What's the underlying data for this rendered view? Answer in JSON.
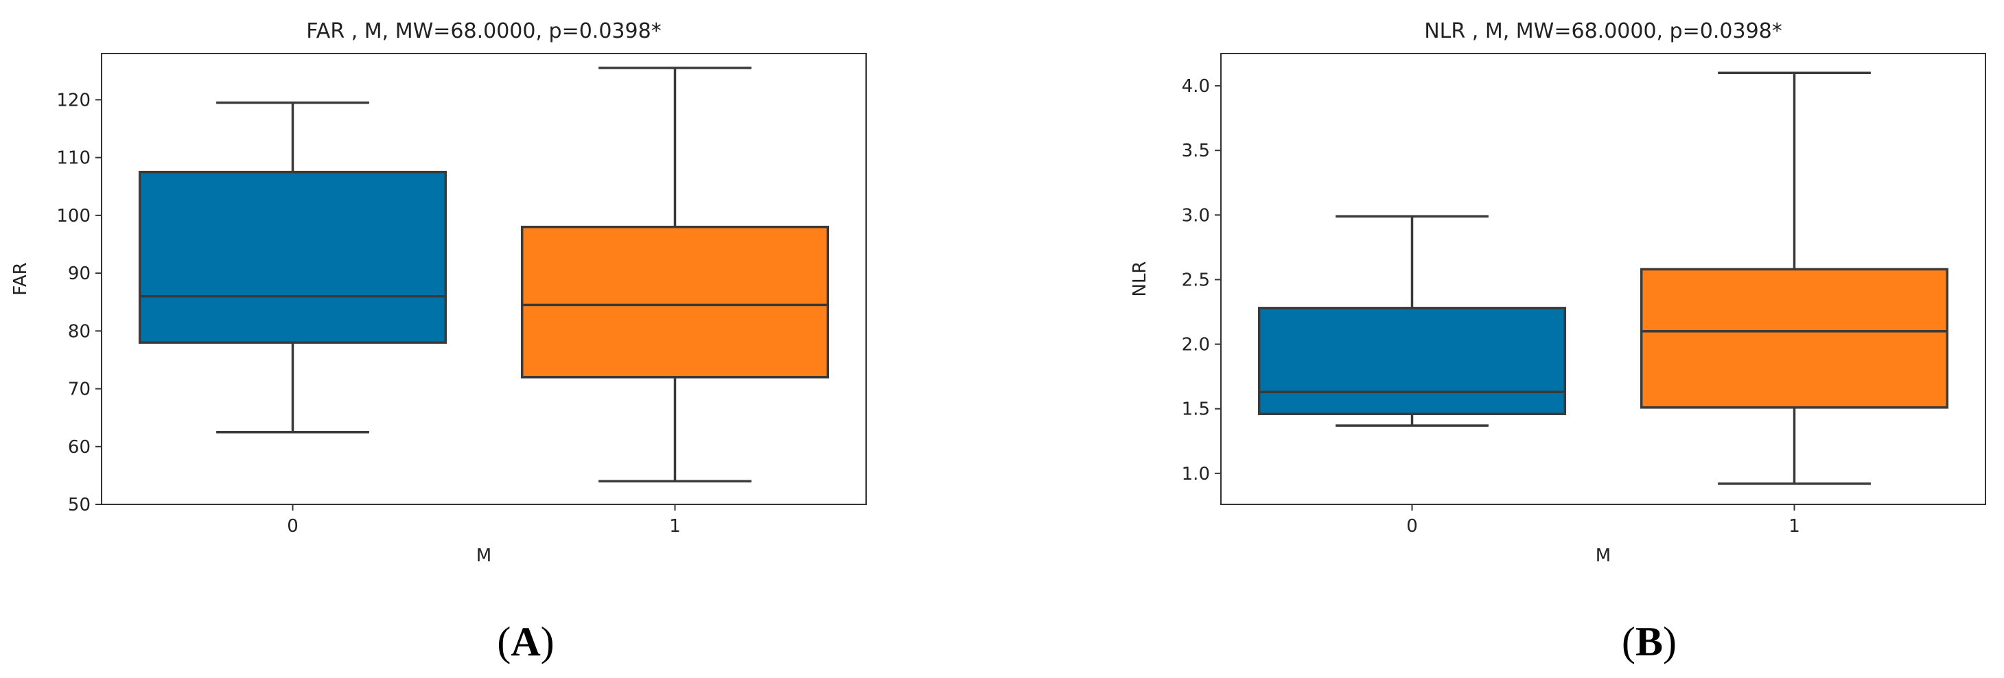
{
  "panel_labels": [
    "(A)",
    "(B)"
  ],
  "panel_label_parts": [
    {
      "open": "(",
      "letter": "A",
      "close": ")"
    },
    {
      "open": "(",
      "letter": "B",
      "close": ")"
    }
  ],
  "colors": {
    "group_0": "#0072a8",
    "group_1": "#ff8019",
    "line": "#3a3a3a",
    "axes": "#333333"
  },
  "chart_data": [
    {
      "type": "box",
      "title": "FAR , M, MW=68.0000, p=0.0398*",
      "xlabel": "M",
      "ylabel": "FAR",
      "categories": [
        "0",
        "1"
      ],
      "ylim": [
        50,
        128
      ],
      "yticks": [
        50,
        60,
        70,
        80,
        90,
        100,
        110,
        120
      ],
      "ytick_labels": [
        "50",
        "60",
        "70",
        "80",
        "90",
        "100",
        "110",
        "120"
      ],
      "boxes": [
        {
          "category": "0",
          "whisker_low": 62.5,
          "q1": 78,
          "median": 86,
          "q3": 107.5,
          "whisker_high": 119.5
        },
        {
          "category": "1",
          "whisker_low": 54,
          "q1": 72,
          "median": 84.5,
          "q3": 98,
          "whisker_high": 125.5
        }
      ]
    },
    {
      "type": "box",
      "title": "NLR , M, MW=68.0000, p=0.0398*",
      "xlabel": "M",
      "ylabel": "NLR",
      "categories": [
        "0",
        "1"
      ],
      "ylim": [
        0.76,
        4.25
      ],
      "yticks": [
        1.0,
        1.5,
        2.0,
        2.5,
        3.0,
        3.5,
        4.0
      ],
      "ytick_labels": [
        "1.0",
        "1.5",
        "2.0",
        "2.5",
        "3.0",
        "3.5",
        "4.0"
      ],
      "boxes": [
        {
          "category": "0",
          "whisker_low": 1.37,
          "q1": 1.46,
          "median": 1.63,
          "q3": 2.28,
          "whisker_high": 2.99
        },
        {
          "category": "1",
          "whisker_low": 0.92,
          "q1": 1.51,
          "median": 2.1,
          "q3": 2.58,
          "whisker_high": 4.1
        }
      ]
    }
  ]
}
